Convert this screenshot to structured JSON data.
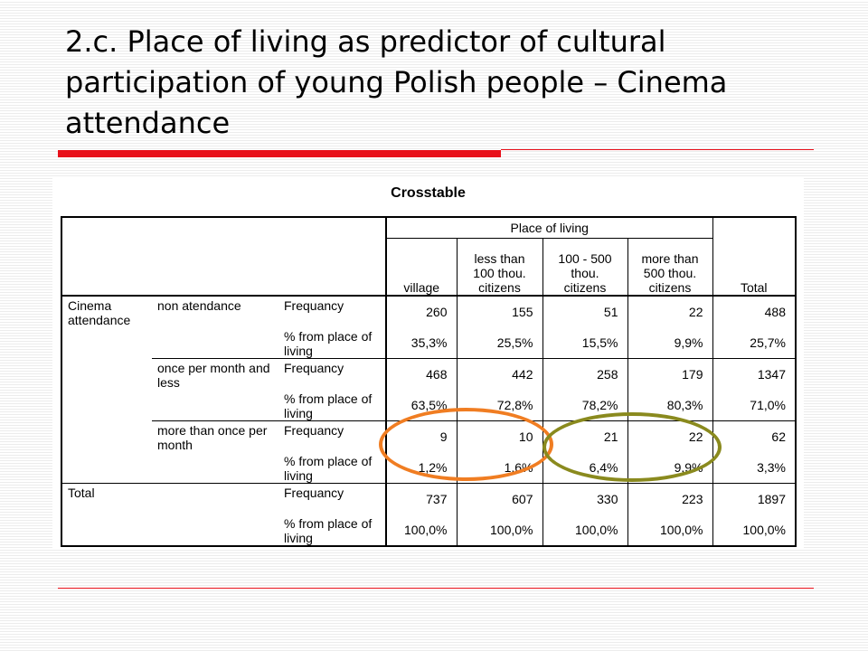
{
  "slide": {
    "title": "2.c. Place of living as predictor of cultural participation of young Polish people – Cinema attendance"
  },
  "crosstable": {
    "caption": "Crosstable",
    "group_header": "Place of living",
    "columns": [
      "village",
      "less than 100 thou. citizens",
      "100 - 500 thou. citizens",
      "more than 500 thou. citizens",
      "Total"
    ],
    "row_variable": "Cinema attendance",
    "stat_labels": {
      "frequency": "Frequancy",
      "percent": "% from place of living"
    },
    "groups": [
      {
        "label": "non atendance",
        "frequency": [
          "260",
          "155",
          "51",
          "22",
          "488"
        ],
        "percent": [
          "35,3%",
          "25,5%",
          "15,5%",
          "9,9%",
          "25,7%"
        ]
      },
      {
        "label": "once per month and less",
        "frequency": [
          "468",
          "442",
          "258",
          "179",
          "1347"
        ],
        "percent": [
          "63,5%",
          "72,8%",
          "78,2%",
          "80,3%",
          "71,0%"
        ]
      },
      {
        "label": "more than once per month",
        "frequency": [
          "9",
          "10",
          "21",
          "22",
          "62"
        ],
        "percent": [
          "1,2%",
          "1,6%",
          "6,4%",
          "9,9%",
          "3,3%"
        ]
      }
    ],
    "total": {
      "label": "Total",
      "frequency": [
        "737",
        "607",
        "330",
        "223",
        "1897"
      ],
      "percent": [
        "100,0%",
        "100,0%",
        "100,0%",
        "100,0%",
        "100,0%"
      ]
    }
  },
  "highlights": {
    "orange": {
      "color": "#f07d22"
    },
    "olive": {
      "color": "#8a8a1e"
    }
  },
  "colors": {
    "accent_rule": "#e8101a"
  }
}
